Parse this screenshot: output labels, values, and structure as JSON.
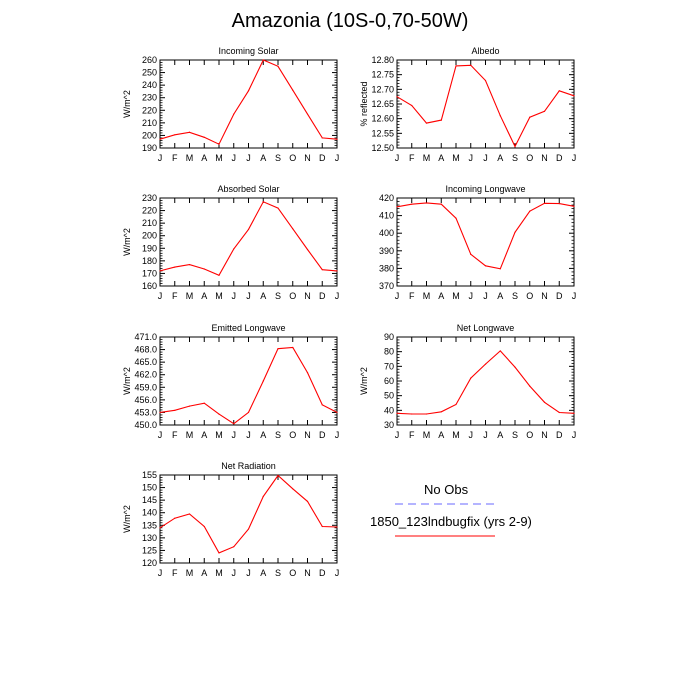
{
  "page_title": "Amazonia (10S-0,70-50W)",
  "colors": {
    "model_line": "#ff0000",
    "obs_line": "#6a6aff",
    "axis": "#000000"
  },
  "legend": {
    "obs_label": "No Obs",
    "model_label": "1850_123lndbugfix (yrs 2-9)"
  },
  "chart_data": [
    {
      "type": "line",
      "title": "Incoming Solar",
      "ylabel": "W/m^2",
      "categories": [
        "J",
        "F",
        "M",
        "A",
        "M",
        "J",
        "J",
        "A",
        "S",
        "O",
        "N",
        "D",
        "J"
      ],
      "ylim": [
        190,
        260
      ],
      "yticks": [
        190,
        200,
        210,
        220,
        230,
        240,
        250,
        260
      ],
      "ytick_labels": [
        "190",
        "200",
        "210",
        "220",
        "230",
        "240",
        "250",
        "260"
      ],
      "series": [
        {
          "name": "1850_123lndbugfix (yrs 2-9)",
          "values": [
            197,
            200.5,
            202.5,
            198.5,
            193,
            217,
            235.5,
            260,
            255,
            236,
            217,
            198,
            197
          ]
        }
      ]
    },
    {
      "type": "line",
      "title": "Albedo",
      "ylabel": "% reflected",
      "categories": [
        "J",
        "F",
        "M",
        "A",
        "M",
        "J",
        "J",
        "A",
        "S",
        "O",
        "N",
        "D",
        "J"
      ],
      "ylim": [
        12.5,
        12.8
      ],
      "yticks": [
        12.5,
        12.55,
        12.6,
        12.65,
        12.7,
        12.75,
        12.8
      ],
      "ytick_labels": [
        "12.50",
        "12.55",
        "12.60",
        "12.65",
        "12.70",
        "12.75",
        "12.80"
      ],
      "series": [
        {
          "name": "1850_123lndbugfix (yrs 2-9)",
          "values": [
            12.675,
            12.645,
            12.585,
            12.595,
            12.78,
            12.782,
            12.73,
            12.61,
            12.505,
            12.605,
            12.625,
            12.695,
            12.678
          ]
        }
      ]
    },
    {
      "type": "line",
      "title": "Absorbed Solar",
      "ylabel": "W/m^2",
      "categories": [
        "J",
        "F",
        "M",
        "A",
        "M",
        "J",
        "J",
        "A",
        "S",
        "O",
        "N",
        "D",
        "J"
      ],
      "ylim": [
        160,
        230
      ],
      "yticks": [
        160,
        170,
        180,
        190,
        200,
        210,
        220,
        230
      ],
      "ytick_labels": [
        "160",
        "170",
        "180",
        "190",
        "200",
        "210",
        "220",
        "230"
      ],
      "series": [
        {
          "name": "1850_123lndbugfix (yrs 2-9)",
          "values": [
            172,
            175,
            177,
            173.5,
            168.5,
            189.5,
            205,
            227,
            222,
            205.5,
            189,
            173,
            172
          ]
        }
      ]
    },
    {
      "type": "line",
      "title": "Incoming Longwave",
      "ylabel": "",
      "categories": [
        "J",
        "F",
        "M",
        "A",
        "M",
        "J",
        "J",
        "A",
        "S",
        "O",
        "N",
        "D",
        "J"
      ],
      "ylim": [
        370,
        420
      ],
      "yticks": [
        370,
        380,
        390,
        400,
        410,
        420
      ],
      "ytick_labels": [
        "370",
        "380",
        "390",
        "400",
        "410",
        "420"
      ],
      "series": [
        {
          "name": "1850_123lndbugfix (yrs 2-9)",
          "values": [
            415,
            416.5,
            417.2,
            416.5,
            408.5,
            388,
            381.5,
            379.8,
            400.5,
            412.5,
            417,
            416.8,
            415.3
          ]
        }
      ]
    },
    {
      "type": "line",
      "title": "Emitted Longwave",
      "ylabel": "W/m^2",
      "categories": [
        "J",
        "F",
        "M",
        "A",
        "M",
        "J",
        "J",
        "A",
        "S",
        "O",
        "N",
        "D",
        "J"
      ],
      "ylim": [
        450,
        471
      ],
      "yticks": [
        450,
        453,
        456,
        459,
        462,
        465,
        468,
        471
      ],
      "ytick_labels": [
        "450.0",
        "453.0",
        "456.0",
        "459.0",
        "462.0",
        "465.0",
        "468.0",
        "471.0"
      ],
      "series": [
        {
          "name": "1850_123lndbugfix (yrs 2-9)",
          "values": [
            453,
            453.5,
            454.5,
            455.2,
            452.6,
            450.3,
            453,
            460.5,
            468.2,
            468.5,
            462.5,
            454.8,
            453
          ]
        }
      ]
    },
    {
      "type": "line",
      "title": "Net Longwave",
      "ylabel": "W/m^2",
      "categories": [
        "J",
        "F",
        "M",
        "A",
        "M",
        "J",
        "J",
        "A",
        "S",
        "O",
        "N",
        "D",
        "J"
      ],
      "ylim": [
        30,
        90
      ],
      "yticks": [
        30,
        40,
        50,
        60,
        70,
        80,
        90
      ],
      "ytick_labels": [
        "30",
        "40",
        "50",
        "60",
        "70",
        "80",
        "90"
      ],
      "series": [
        {
          "name": "1850_123lndbugfix (yrs 2-9)",
          "values": [
            38,
            37.5,
            37.5,
            39,
            44,
            62,
            71.5,
            80.5,
            69.5,
            56.5,
            45.5,
            38.5,
            38
          ]
        }
      ]
    },
    {
      "type": "line",
      "title": "Net Radiation",
      "ylabel": "W/m^2",
      "categories": [
        "J",
        "F",
        "M",
        "A",
        "M",
        "J",
        "J",
        "A",
        "S",
        "O",
        "N",
        "D",
        "J"
      ],
      "ylim": [
        120,
        155
      ],
      "yticks": [
        120,
        125,
        130,
        135,
        140,
        145,
        150,
        155
      ],
      "ytick_labels": [
        "120",
        "125",
        "130",
        "135",
        "140",
        "145",
        "150",
        "155"
      ],
      "series": [
        {
          "name": "1850_123lndbugfix (yrs 2-9)",
          "values": [
            134,
            137.8,
            139.5,
            134.5,
            124,
            126.5,
            133.5,
            146.5,
            154.8,
            149.5,
            144.5,
            134.5,
            134.3
          ]
        }
      ]
    }
  ]
}
